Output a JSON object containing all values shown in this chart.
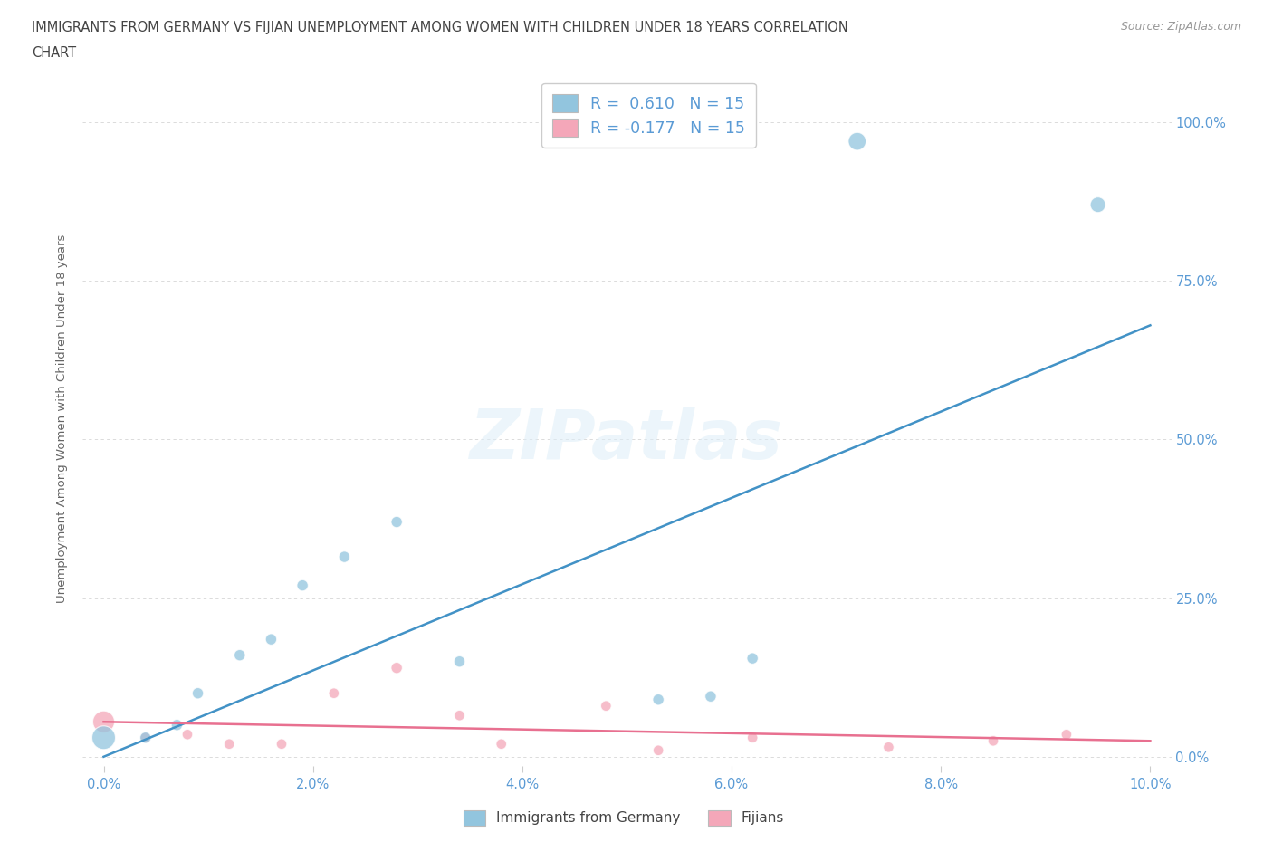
{
  "title_line1": "IMMIGRANTS FROM GERMANY VS FIJIAN UNEMPLOYMENT AMONG WOMEN WITH CHILDREN UNDER 18 YEARS CORRELATION",
  "title_line2": "CHART",
  "source": "Source: ZipAtlas.com",
  "ylabel": "Unemployment Among Women with Children Under 18 years",
  "watermark": "ZIPatlas",
  "legend_entry1": "R =  0.610   N = 15",
  "legend_entry2": "R = -0.177   N = 15",
  "legend_label1": "Immigrants from Germany",
  "legend_label2": "Fijians",
  "blue_color": "#92C5DE",
  "pink_color": "#F4A7B9",
  "blue_line_color": "#4292C6",
  "pink_line_color": "#E87090",
  "title_color": "#444444",
  "axis_color": "#5B9BD5",
  "ytick_labels": [
    "0.0%",
    "25.0%",
    "50.0%",
    "75.0%",
    "100.0%"
  ],
  "ytick_values": [
    0.0,
    0.25,
    0.5,
    0.75,
    1.0
  ],
  "blue_x": [
    0.0,
    0.004,
    0.007,
    0.009,
    0.013,
    0.016,
    0.019,
    0.023,
    0.028,
    0.034,
    0.053,
    0.058,
    0.062,
    0.072,
    0.095
  ],
  "blue_y": [
    0.03,
    0.03,
    0.05,
    0.1,
    0.16,
    0.185,
    0.27,
    0.315,
    0.37,
    0.15,
    0.09,
    0.095,
    0.155,
    0.97,
    0.87
  ],
  "blue_size": [
    350,
    80,
    80,
    80,
    80,
    80,
    80,
    80,
    80,
    80,
    80,
    80,
    80,
    200,
    150
  ],
  "pink_x": [
    0.0,
    0.004,
    0.008,
    0.012,
    0.017,
    0.022,
    0.028,
    0.034,
    0.038,
    0.048,
    0.053,
    0.062,
    0.075,
    0.085,
    0.092
  ],
  "pink_y": [
    0.055,
    0.03,
    0.035,
    0.02,
    0.02,
    0.1,
    0.14,
    0.065,
    0.02,
    0.08,
    0.01,
    0.03,
    0.015,
    0.025,
    0.035
  ],
  "pink_size": [
    300,
    70,
    70,
    70,
    70,
    70,
    80,
    70,
    70,
    70,
    70,
    70,
    70,
    70,
    70
  ],
  "xmin": -0.002,
  "xmax": 0.102,
  "ymin": -0.015,
  "ymax": 1.08,
  "blue_line_x0": 0.0,
  "blue_line_y0": 0.0,
  "blue_line_x1": 0.1,
  "blue_line_y1": 0.68,
  "pink_line_x0": 0.0,
  "pink_line_y0": 0.055,
  "pink_line_x1": 0.1,
  "pink_line_y1": 0.025
}
